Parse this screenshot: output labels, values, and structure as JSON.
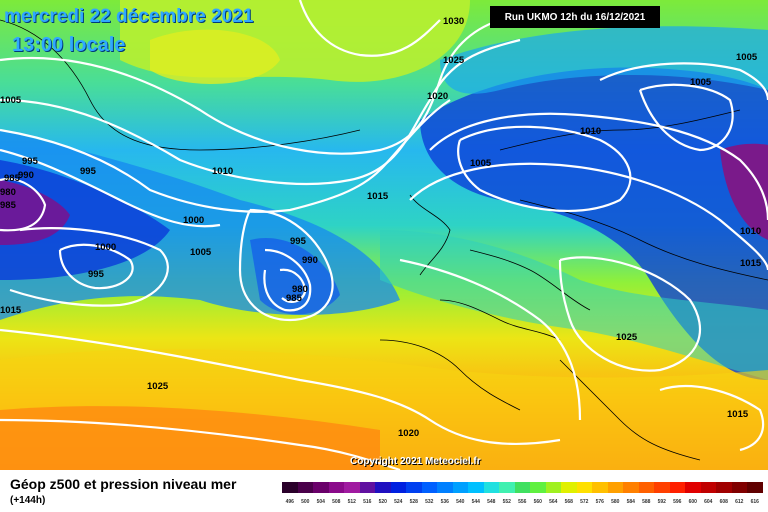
{
  "map": {
    "date": "mercredi 22 décembre 2021",
    "local_time": "13:00 locale",
    "run_label": "Run UKMO 12h du 16/12/2021",
    "copyright": "Copyright 2021 Meteociel.fr",
    "title": "Géop z500 et pression niveau mer",
    "subtitle": "(+144h)",
    "isobar_labels": [
      "1030",
      "1025",
      "1020",
      "1005",
      "1005",
      "1010",
      "1005",
      "995",
      "990",
      "985",
      "980",
      "985",
      "995",
      "1010",
      "1000",
      "1005",
      "995",
      "990",
      "1000",
      "985",
      "980",
      "995",
      "1015",
      "1010",
      "1005",
      "1015",
      "1015",
      "1025",
      "1025",
      "1020",
      "1015"
    ],
    "legend_values": [
      "496",
      "500",
      "504",
      "508",
      "512",
      "516",
      "520",
      "524",
      "528",
      "532",
      "536",
      "540",
      "544",
      "548",
      "552",
      "556",
      "560",
      "564",
      "568",
      "572",
      "576",
      "580",
      "584",
      "588",
      "592",
      "596",
      "600",
      "604",
      "608",
      "612",
      "616"
    ],
    "legend_colors": [
      "#2a002a",
      "#4a004a",
      "#6a006a",
      "#8a0a8a",
      "#a01aa0",
      "#6010a0",
      "#2010c0",
      "#0020e0",
      "#0040f0",
      "#0060ff",
      "#0080ff",
      "#00a0ff",
      "#00c0ff",
      "#20e0e0",
      "#40f0b0",
      "#40e060",
      "#60f040",
      "#a0f020",
      "#e0f000",
      "#ffe000",
      "#ffc000",
      "#ffa000",
      "#ff8000",
      "#ff6000",
      "#ff4000",
      "#ff2000",
      "#e00000",
      "#c00000",
      "#a00000",
      "#800000",
      "#600000"
    ]
  }
}
